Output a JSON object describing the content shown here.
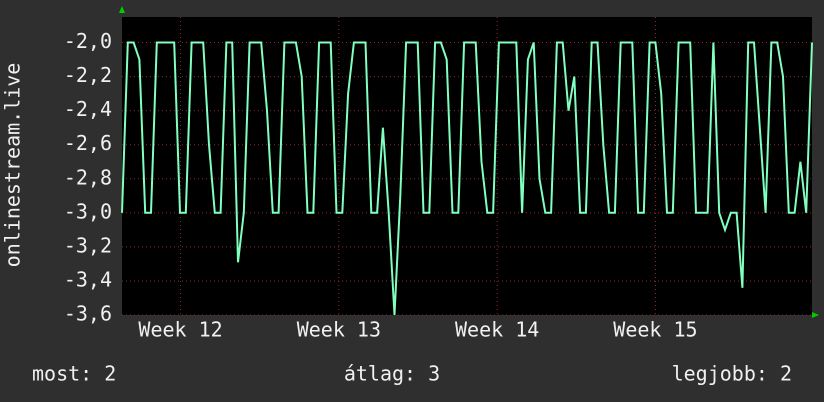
{
  "chart_data": {
    "type": "line",
    "y_label": "onlinestream.live",
    "x": [
      0,
      1,
      2,
      3,
      4,
      5,
      6,
      7,
      8,
      9,
      10,
      11,
      12,
      13,
      14,
      15,
      16,
      17,
      18,
      19,
      20,
      21,
      22,
      23,
      24,
      25,
      26,
      27,
      28,
      29,
      30,
      31,
      32,
      33,
      34,
      35,
      36,
      37,
      38,
      39,
      40,
      41,
      42,
      43,
      44,
      45,
      46,
      47,
      48,
      49,
      50,
      51,
      52,
      53,
      54,
      55,
      56,
      57,
      58,
      59,
      60,
      61,
      62,
      63,
      64,
      65,
      66,
      67,
      68,
      69,
      70,
      71,
      72,
      73,
      74,
      75,
      76,
      77,
      78,
      79,
      80,
      81,
      82,
      83,
      84,
      85,
      86,
      87,
      88,
      89,
      90,
      91,
      92,
      93,
      94,
      95,
      96,
      97,
      98,
      99,
      100,
      101,
      102,
      103,
      104,
      105,
      106,
      107,
      108,
      109,
      110,
      111,
      112,
      113,
      114,
      115,
      116,
      117,
      118,
      119
    ],
    "series": [
      {
        "color": "#80ffbf",
        "values": [
          -3,
          -2,
          -2,
          -2.1,
          -3,
          -3,
          -2,
          -2,
          -2,
          -2,
          -3,
          -3,
          -2,
          -2,
          -2,
          -2.6,
          -3,
          -3,
          -2,
          -2,
          -3.29,
          -3,
          -2,
          -2,
          -2,
          -2.4,
          -3,
          -3,
          -2,
          -2,
          -2,
          -2.2,
          -3,
          -3,
          -2,
          -2,
          -2,
          -3,
          -3,
          -2.3,
          -2,
          -2,
          -2,
          -3,
          -3,
          -2.5,
          -3,
          -3.6,
          -2.9,
          -2,
          -2,
          -2,
          -3,
          -3,
          -2,
          -2,
          -2.1,
          -3,
          -3,
          -2,
          -2,
          -2,
          -2.7,
          -3,
          -3,
          -2,
          -2,
          -2,
          -2,
          -3,
          -2.1,
          -2,
          -2.8,
          -3,
          -3,
          -2,
          -2,
          -2.4,
          -2.2,
          -3,
          -3,
          -2,
          -2,
          -2.6,
          -3,
          -3,
          -2,
          -2,
          -2,
          -3,
          -3,
          -2,
          -2,
          -2.3,
          -3,
          -3,
          -2,
          -2,
          -2,
          -3,
          -3,
          -3,
          -2,
          -3,
          -3.1,
          -3,
          -3,
          -3.44,
          -2,
          -2,
          -2.5,
          -3,
          -2,
          -2,
          -2.2,
          -3,
          -3,
          -2.7,
          -3,
          -2
        ]
      }
    ],
    "xlim": [
      0,
      119
    ],
    "xticks": [
      {
        "value": 10.1,
        "label": "Week 12"
      },
      {
        "value": 37.4,
        "label": "Week 13"
      },
      {
        "value": 64.7,
        "label": "Week 14"
      },
      {
        "value": 92,
        "label": "Week 15"
      }
    ],
    "ylim": [
      -3.6,
      -1.85
    ],
    "yticks": [
      {
        "value": -2.0,
        "label": "-2,0"
      },
      {
        "value": -2.2,
        "label": "-2,2"
      },
      {
        "value": -2.4,
        "label": "-2,4"
      },
      {
        "value": -2.6,
        "label": "-2,6"
      },
      {
        "value": -2.8,
        "label": "-2,8"
      },
      {
        "value": -3.0,
        "label": "-3,0"
      },
      {
        "value": -3.2,
        "label": "-3,2"
      },
      {
        "value": -3.4,
        "label": "-3,4"
      },
      {
        "value": -3.6,
        "label": "-3,6"
      }
    ],
    "grid": true,
    "legend": [
      "most: 2",
      "átlag: 3",
      "legjobb: 2"
    ]
  }
}
